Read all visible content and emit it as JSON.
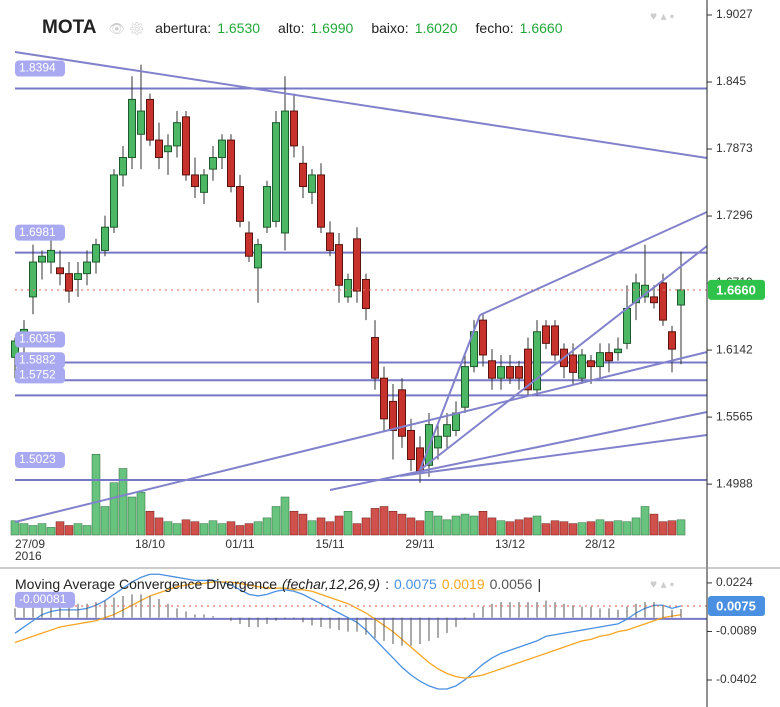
{
  "chart_data": [
    {
      "type": "candlestick",
      "title": "MOTA",
      "header": [
        {
          "name": "abertura:",
          "label": "1.6530"
        },
        {
          "name": "alto:",
          "label": "1.6990"
        },
        {
          "name": "baixo:",
          "label": "1.6020"
        },
        {
          "name": "fecho:",
          "label": "1.6660"
        }
      ],
      "categories": [
        "27/09",
        null,
        null,
        null,
        null,
        null,
        null,
        null,
        null,
        null,
        null,
        null,
        null,
        null,
        null,
        "18/10",
        null,
        null,
        null,
        null,
        null,
        null,
        null,
        null,
        null,
        "01/11",
        null,
        null,
        null,
        null,
        null,
        null,
        null,
        null,
        null,
        "15/11",
        null,
        null,
        null,
        null,
        null,
        null,
        null,
        null,
        null,
        "29/11",
        null,
        null,
        null,
        null,
        null,
        null,
        null,
        null,
        null,
        "13/12",
        null,
        null,
        null,
        null,
        null,
        null,
        null,
        null,
        null,
        "28/12",
        null,
        null,
        null,
        null,
        null,
        null,
        null,
        null,
        null
      ],
      "year_label": "2016",
      "open": [
        1.608,
        1.62,
        1.66,
        1.69,
        1.69,
        1.685,
        1.68,
        1.675,
        1.68,
        1.69,
        1.7,
        1.72,
        1.765,
        1.78,
        1.8,
        1.83,
        1.795,
        1.785,
        1.79,
        1.815,
        1.765,
        1.75,
        1.77,
        1.78,
        1.795,
        1.755,
        1.715,
        1.685,
        1.72,
        1.725,
        1.715,
        1.82,
        1.775,
        1.75,
        1.765,
        1.715,
        1.705,
        1.66,
        1.71,
        1.675,
        1.625,
        1.59,
        1.57,
        1.58,
        1.545,
        1.53,
        1.515,
        1.53,
        1.54,
        1.545,
        1.565,
        1.6,
        1.64,
        1.605,
        1.59,
        1.6,
        1.6,
        1.615,
        1.58,
        1.635,
        1.635,
        1.615,
        1.61,
        1.59,
        1.605,
        1.6,
        1.612,
        1.612,
        1.62,
        1.655,
        1.66,
        1.66,
        1.672,
        1.63,
        1.653
      ],
      "high": [
        1.625,
        1.64,
        1.705,
        1.7,
        1.71,
        1.7,
        1.69,
        1.69,
        1.7,
        1.71,
        1.73,
        1.77,
        1.79,
        1.85,
        1.86,
        1.835,
        1.81,
        1.8,
        1.82,
        1.82,
        1.78,
        1.77,
        1.79,
        1.8,
        1.8,
        1.765,
        1.725,
        1.71,
        1.76,
        1.82,
        1.85,
        1.835,
        1.79,
        1.77,
        1.775,
        1.725,
        1.715,
        1.68,
        1.72,
        1.68,
        1.64,
        1.6,
        1.585,
        1.59,
        1.555,
        1.54,
        1.56,
        1.55,
        1.56,
        1.57,
        1.61,
        1.64,
        1.645,
        1.615,
        1.61,
        1.61,
        1.605,
        1.625,
        1.64,
        1.64,
        1.64,
        1.62,
        1.62,
        1.615,
        1.61,
        1.62,
        1.62,
        1.625,
        1.67,
        1.68,
        1.705,
        1.67,
        1.68,
        1.635,
        1.699
      ],
      "low": [
        1.59,
        1.6,
        1.645,
        1.675,
        1.68,
        1.67,
        1.655,
        1.66,
        1.67,
        1.68,
        1.695,
        1.715,
        1.755,
        1.77,
        1.77,
        1.79,
        1.77,
        1.765,
        1.78,
        1.76,
        1.745,
        1.74,
        1.76,
        1.77,
        1.75,
        1.72,
        1.69,
        1.655,
        1.715,
        1.72,
        1.7,
        1.78,
        1.745,
        1.74,
        1.715,
        1.695,
        1.655,
        1.655,
        1.655,
        1.64,
        1.58,
        1.545,
        1.52,
        1.53,
        1.51,
        1.5,
        1.505,
        1.52,
        1.53,
        1.54,
        1.56,
        1.595,
        1.6,
        1.58,
        1.58,
        1.585,
        1.58,
        1.575,
        1.575,
        1.615,
        1.605,
        1.59,
        1.585,
        1.585,
        1.585,
        1.59,
        1.595,
        1.605,
        1.615,
        1.64,
        1.655,
        1.65,
        1.635,
        1.595,
        1.602
      ],
      "close": [
        1.622,
        1.632,
        1.69,
        1.695,
        1.7,
        1.68,
        1.665,
        1.68,
        1.69,
        1.705,
        1.72,
        1.765,
        1.78,
        1.83,
        1.82,
        1.795,
        1.78,
        1.79,
        1.81,
        1.765,
        1.755,
        1.765,
        1.78,
        1.795,
        1.755,
        1.725,
        1.695,
        1.705,
        1.755,
        1.81,
        1.82,
        1.79,
        1.755,
        1.765,
        1.72,
        1.7,
        1.67,
        1.675,
        1.665,
        1.65,
        1.59,
        1.555,
        1.545,
        1.54,
        1.52,
        1.51,
        1.55,
        1.54,
        1.55,
        1.56,
        1.6,
        1.63,
        1.61,
        1.59,
        1.6,
        1.59,
        1.59,
        1.58,
        1.63,
        1.62,
        1.61,
        1.6,
        1.595,
        1.61,
        1.6,
        1.612,
        1.605,
        1.615,
        1.65,
        1.672,
        1.67,
        1.655,
        1.64,
        1.615,
        1.666
      ],
      "volume": [
        15,
        12,
        10,
        12,
        8,
        14,
        10,
        12,
        10,
        85,
        30,
        55,
        70,
        40,
        45,
        25,
        18,
        14,
        12,
        16,
        14,
        12,
        15,
        12,
        14,
        10,
        12,
        14,
        18,
        30,
        40,
        25,
        22,
        15,
        18,
        14,
        20,
        25,
        12,
        18,
        28,
        30,
        25,
        22,
        18,
        15,
        25,
        20,
        16,
        20,
        22,
        20,
        25,
        18,
        15,
        14,
        16,
        18,
        20,
        12,
        15,
        14,
        12,
        13,
        14,
        16,
        14,
        15,
        14,
        18,
        30,
        22,
        14,
        15,
        16
      ],
      "up_color": "#4cb866",
      "down_color": "#c8322c",
      "ylim": [
        1.455,
        1.9156
      ],
      "yticks": [
        1.9027,
        1.845,
        1.7873,
        1.7296,
        1.6719,
        1.6142,
        1.5565,
        1.4988
      ],
      "hlines": [
        1.8394,
        1.6981,
        1.6035,
        1.5882,
        1.5752,
        1.5023
      ],
      "hline_color": "#7878c8",
      "last_price": {
        "value": 1.666,
        "label": "1.6660"
      }
    },
    {
      "type": "macd",
      "title": "Moving Average Convergence Divergence",
      "params": "(fechar,12,26,9)",
      "separator": ":",
      "suffix": "|",
      "series": [
        {
          "color": "#4a90e2",
          "values": [
            -0.01,
            -0.006,
            -0.002,
            0.002,
            0.004,
            0.005,
            0.005,
            0.005,
            0.006,
            0.008,
            0.011,
            0.015,
            0.019,
            0.023,
            0.026,
            0.028,
            0.028,
            0.027,
            0.026,
            0.025,
            0.024,
            0.024,
            0.024,
            0.023,
            0.021,
            0.018,
            0.015,
            0.014,
            0.015,
            0.017,
            0.018,
            0.017,
            0.015,
            0.012,
            0.009,
            0.006,
            0.003,
            0.0,
            -0.003,
            -0.008,
            -0.014,
            -0.02,
            -0.026,
            -0.032,
            -0.037,
            -0.041,
            -0.044,
            -0.046,
            -0.046,
            -0.044,
            -0.04,
            -0.035,
            -0.03,
            -0.026,
            -0.023,
            -0.021,
            -0.019,
            -0.017,
            -0.015,
            -0.012,
            -0.011,
            -0.01,
            -0.009,
            -0.008,
            -0.007,
            -0.006,
            -0.005,
            -0.004,
            -0.001,
            0.003,
            0.006,
            0.008,
            0.008,
            0.006,
            0.0075
          ]
        },
        {
          "color": "#f5a623",
          "values": [
            -0.016,
            -0.014,
            -0.012,
            -0.01,
            -0.008,
            -0.006,
            -0.005,
            -0.004,
            -0.003,
            -0.002,
            0.0,
            0.002,
            0.005,
            0.008,
            0.011,
            0.014,
            0.016,
            0.018,
            0.02,
            0.021,
            0.022,
            0.022,
            0.023,
            0.023,
            0.023,
            0.022,
            0.021,
            0.02,
            0.019,
            0.019,
            0.019,
            0.018,
            0.018,
            0.017,
            0.015,
            0.013,
            0.011,
            0.009,
            0.006,
            0.003,
            -0.001,
            -0.005,
            -0.009,
            -0.014,
            -0.019,
            -0.024,
            -0.029,
            -0.033,
            -0.036,
            -0.038,
            -0.039,
            -0.038,
            -0.037,
            -0.035,
            -0.033,
            -0.031,
            -0.029,
            -0.027,
            -0.025,
            -0.023,
            -0.021,
            -0.019,
            -0.017,
            -0.015,
            -0.014,
            -0.012,
            -0.011,
            -0.009,
            -0.008,
            -0.006,
            -0.004,
            -0.002,
            0.0,
            0.001,
            0.0019
          ]
        },
        {
          "color": "#555555",
          "histogram": true,
          "values": [
            0.006,
            0.008,
            0.01,
            0.012,
            0.012,
            0.011,
            0.01,
            0.009,
            0.009,
            0.01,
            0.011,
            0.013,
            0.014,
            0.015,
            0.015,
            0.014,
            0.012,
            0.009,
            0.006,
            0.004,
            0.002,
            0.002,
            0.001,
            0.0,
            -0.002,
            -0.004,
            -0.006,
            -0.006,
            -0.004,
            -0.002,
            -0.001,
            -0.001,
            -0.003,
            -0.005,
            -0.006,
            -0.007,
            -0.008,
            -0.009,
            -0.009,
            -0.011,
            -0.013,
            -0.015,
            -0.017,
            -0.018,
            -0.018,
            -0.017,
            -0.015,
            -0.013,
            -0.01,
            -0.006,
            -0.001,
            0.003,
            0.007,
            0.009,
            0.01,
            0.01,
            0.01,
            0.01,
            0.01,
            0.011,
            0.01,
            0.009,
            0.008,
            0.007,
            0.007,
            0.006,
            0.006,
            0.005,
            0.007,
            0.009,
            0.01,
            0.01,
            0.008,
            0.005,
            0.0056
          ]
        }
      ],
      "ylim": [
        -0.0576,
        0.0275
      ],
      "yticks": [
        0.0224,
        -0.0089,
        -0.0402
      ],
      "hlines": [
        -0.00081
      ],
      "hline_color": "#7878c8"
    }
  ]
}
